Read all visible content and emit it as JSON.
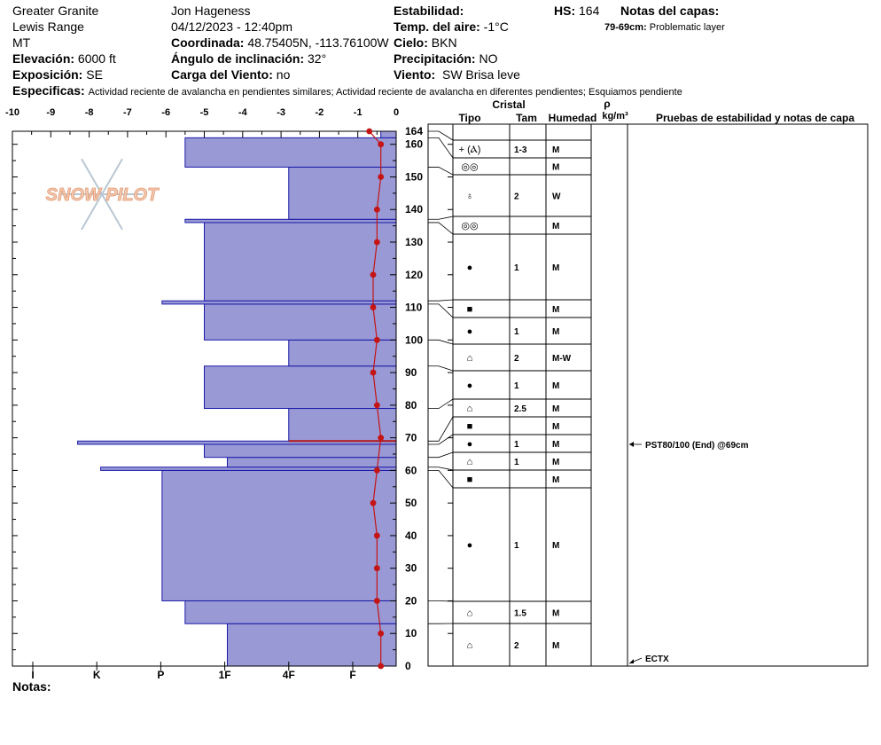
{
  "header": {
    "location": "Greater Granite",
    "range": "Lewis Range",
    "state": "MT",
    "elevation_label": "Elevación:",
    "elevation_value": "6000 ft",
    "aspect_label": "Exposición:",
    "aspect_value": "SE",
    "observer": "Jon Hageness",
    "datetime": "04/12/2023 - 12:40pm",
    "coord_label": "Coordinada:",
    "coord_value": "48.75405N, -113.76100W",
    "slope_label": "Ángulo de inclinación:",
    "slope_value": "32°",
    "wind_load_label": "Carga del Viento:",
    "wind_load_value": "no",
    "stability_label": "Estabilidad:",
    "air_temp_label": "Temp. del aire:",
    "air_temp_value": "-1°C",
    "sky_label": "Cielo:",
    "sky_value": "BKN",
    "precip_label": "Precipitación:",
    "precip_value": "NO",
    "wind_label": "Viento:",
    "wind_value": "SW Brisa leve",
    "hs_label": "HS:",
    "hs_value": "164",
    "layer_notes_label": "Notas del capas:",
    "layer_note_range": "79-69cm:",
    "layer_note_text": "Problematic layer",
    "specifics_label": "Especificas:",
    "specifics_text": "Actividad reciente de avalancha en pendientes similares; Actividad reciente de avalancha en diferentes pendientes; Esquiamos pendiente",
    "notes_label": "Notas:"
  },
  "watermark": "SNOW PILOT",
  "table_headers": {
    "crystal": "Cristal",
    "type": "Tipo",
    "size": "Tam",
    "moisture": "Humedad",
    "rho": "ρ",
    "density_unit": "kg/m³",
    "tests": "Pruebas de estabilidad y notas de capa"
  },
  "chart_data": {
    "type": "bar",
    "x_temp_ticks": [
      "-10",
      "-9",
      "-8",
      "-7",
      "-6",
      "-5",
      "-4",
      "-3",
      "-2",
      "-1",
      "0"
    ],
    "x_temp_range": [
      -10,
      0
    ],
    "hardness_ticks": [
      "I",
      "K",
      "P",
      "1F",
      "4F",
      "F"
    ],
    "y_range": [
      0,
      164
    ],
    "y_ticks": [
      "0",
      "10",
      "20",
      "30",
      "40",
      "50",
      "60",
      "70",
      "80",
      "90",
      "100",
      "110",
      "120",
      "130",
      "140",
      "150",
      "160"
    ],
    "hs_tick": "164",
    "hardness_layers": [
      {
        "bottom": 0,
        "top": 13,
        "hardness_temp_units": -4.4
      },
      {
        "bottom": 13,
        "top": 20,
        "hardness_temp_units": -5.5
      },
      {
        "bottom": 20,
        "top": 60,
        "hardness_temp_units": -6.1
      },
      {
        "bottom": 60,
        "top": 61,
        "hardness_temp_units": -7.7
      },
      {
        "bottom": 61,
        "top": 64,
        "hardness_temp_units": -4.4
      },
      {
        "bottom": 64,
        "top": 68,
        "hardness_temp_units": -5.0
      },
      {
        "bottom": 68,
        "top": 69,
        "hardness_temp_units": -8.3
      },
      {
        "bottom": 69,
        "top": 79,
        "hardness_temp_units": -2.8
      },
      {
        "bottom": 79,
        "top": 92,
        "hardness_temp_units": -5.0
      },
      {
        "bottom": 92,
        "top": 100,
        "hardness_temp_units": -2.8
      },
      {
        "bottom": 100,
        "top": 111,
        "hardness_temp_units": -5.0
      },
      {
        "bottom": 111,
        "top": 112,
        "hardness_temp_units": -6.1
      },
      {
        "bottom": 112,
        "top": 136,
        "hardness_temp_units": -5.0
      },
      {
        "bottom": 136,
        "top": 137,
        "hardness_temp_units": -5.5
      },
      {
        "bottom": 137,
        "top": 153,
        "hardness_temp_units": -2.8
      },
      {
        "bottom": 153,
        "top": 162,
        "hardness_temp_units": -5.5
      },
      {
        "bottom": 162,
        "top": 164,
        "hardness_temp_units": -0.4
      }
    ],
    "temperature_profile": [
      {
        "depth": 0,
        "temp": -0.4
      },
      {
        "depth": 10,
        "temp": -0.4
      },
      {
        "depth": 20,
        "temp": -0.5
      },
      {
        "depth": 30,
        "temp": -0.5
      },
      {
        "depth": 40,
        "temp": -0.5
      },
      {
        "depth": 50,
        "temp": -0.6
      },
      {
        "depth": 60,
        "temp": -0.5
      },
      {
        "depth": 70,
        "temp": -0.4
      },
      {
        "depth": 80,
        "temp": -0.5
      },
      {
        "depth": 90,
        "temp": -0.6
      },
      {
        "depth": 100,
        "temp": -0.5
      },
      {
        "depth": 110,
        "temp": -0.6
      },
      {
        "depth": 120,
        "temp": -0.6
      },
      {
        "depth": 130,
        "temp": -0.5
      },
      {
        "depth": 140,
        "temp": -0.5
      },
      {
        "depth": 150,
        "temp": -0.4
      },
      {
        "depth": 160,
        "temp": -0.4
      },
      {
        "depth": 164,
        "temp": -0.7
      }
    ],
    "problem_layer_depth": 69,
    "layers_table": [
      {
        "bottom": 162,
        "top": 164,
        "type": "+ (Ⲁ)",
        "size": "1-3",
        "moist": "M"
      },
      {
        "bottom": 153,
        "top": 162,
        "type": "◎◎",
        "size": "",
        "moist": "M"
      },
      {
        "bottom": 137,
        "top": 153,
        "type": "♁",
        "size": "2",
        "moist": "W"
      },
      {
        "bottom": 136,
        "top": 137,
        "type": "◎◎",
        "size": "",
        "moist": "M"
      },
      {
        "bottom": 112,
        "top": 136,
        "type": "●",
        "size": "1",
        "moist": "M"
      },
      {
        "bottom": 111,
        "top": 112,
        "type": "■",
        "size": "",
        "moist": "M"
      },
      {
        "bottom": 100,
        "top": 111,
        "type": "●",
        "size": "1",
        "moist": "M"
      },
      {
        "bottom": 92,
        "top": 100,
        "type": "⌂",
        "size": "2",
        "moist": "M-W"
      },
      {
        "bottom": 79,
        "top": 92,
        "type": "●",
        "size": "1",
        "moist": "M"
      },
      {
        "bottom": 69,
        "top": 79,
        "type": "⌂",
        "size": "2.5",
        "moist": "M"
      },
      {
        "bottom": 68,
        "top": 69,
        "type": "■",
        "size": "",
        "moist": "M"
      },
      {
        "bottom": 64,
        "top": 68,
        "type": "●",
        "size": "1",
        "moist": "M"
      },
      {
        "bottom": 61,
        "top": 64,
        "type": "⌂",
        "size": "1",
        "moist": "M"
      },
      {
        "bottom": 60,
        "top": 61,
        "type": "■",
        "size": "",
        "moist": "M"
      },
      {
        "bottom": 20,
        "top": 60,
        "type": "●",
        "size": "1",
        "moist": "M"
      },
      {
        "bottom": 13,
        "top": 20,
        "type": "⌂",
        "size": "1.5",
        "moist": "M"
      },
      {
        "bottom": 0,
        "top": 13,
        "type": "⌂",
        "size": "2",
        "moist": "M"
      }
    ],
    "tests": [
      {
        "depth": 69,
        "text": "PST80/100 (End) @69cm"
      },
      {
        "depth": 0,
        "text": "ECTX"
      }
    ]
  }
}
